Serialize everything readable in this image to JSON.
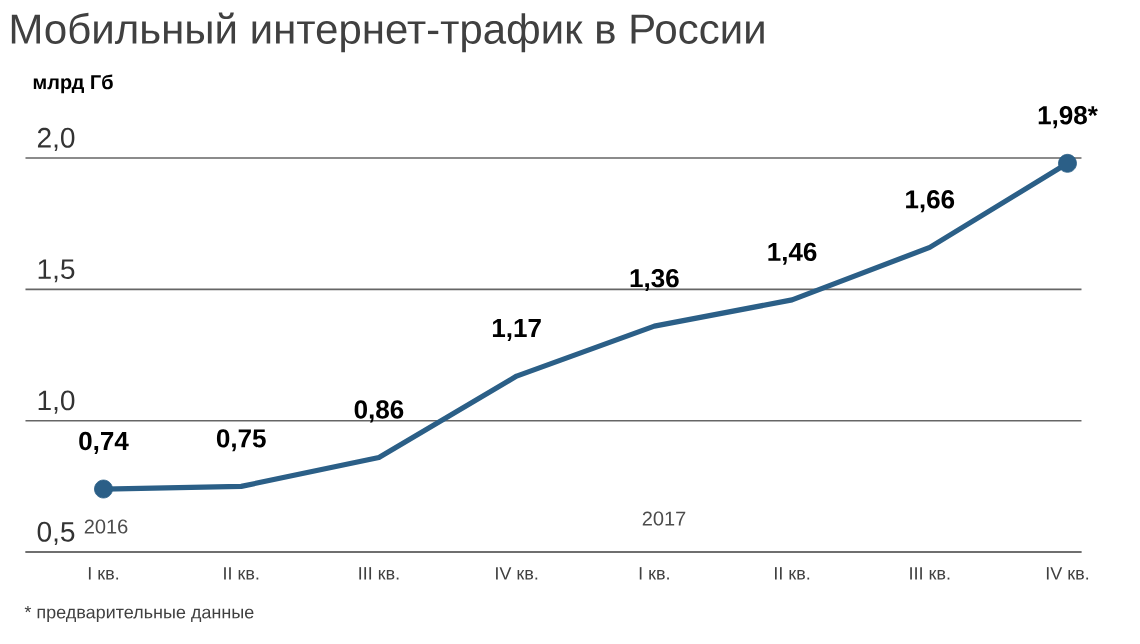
{
  "chart_data": {
    "type": "line",
    "title": "Мобильный интернет-трафик в России",
    "ylabel": "млрд Гб",
    "categories": [
      "I кв.",
      "II кв.",
      "III кв.",
      "IV кв.",
      "I кв.",
      "II кв.",
      "III кв.",
      "IV кв."
    ],
    "series": [
      {
        "color": "#2b5f87",
        "values": [
          0.74,
          0.75,
          0.86,
          1.17,
          1.36,
          1.46,
          1.66,
          1.98
        ],
        "value_labels": [
          "0,74",
          "0,75",
          "0,86",
          "1,17",
          "1,36",
          "1,46",
          "1,66",
          "1,98*"
        ]
      },
      {
        "type": "scatter",
        "color": "#2b5f87",
        "marker": "circle",
        "values": [
          0.74,
          null,
          null,
          null,
          null,
          null,
          null,
          1.98
        ]
      }
    ],
    "ylim": [
      0.5,
      2.0
    ],
    "yticks": [
      {
        "value": 0.5,
        "label": "0,5"
      },
      {
        "value": 1.0,
        "label": "1,0"
      },
      {
        "value": 1.5,
        "label": "1,5"
      },
      {
        "value": 2.0,
        "label": "2,0"
      }
    ],
    "grid": "y",
    "annotations": [
      "2016",
      "2017",
      "* предварительные данные"
    ]
  }
}
